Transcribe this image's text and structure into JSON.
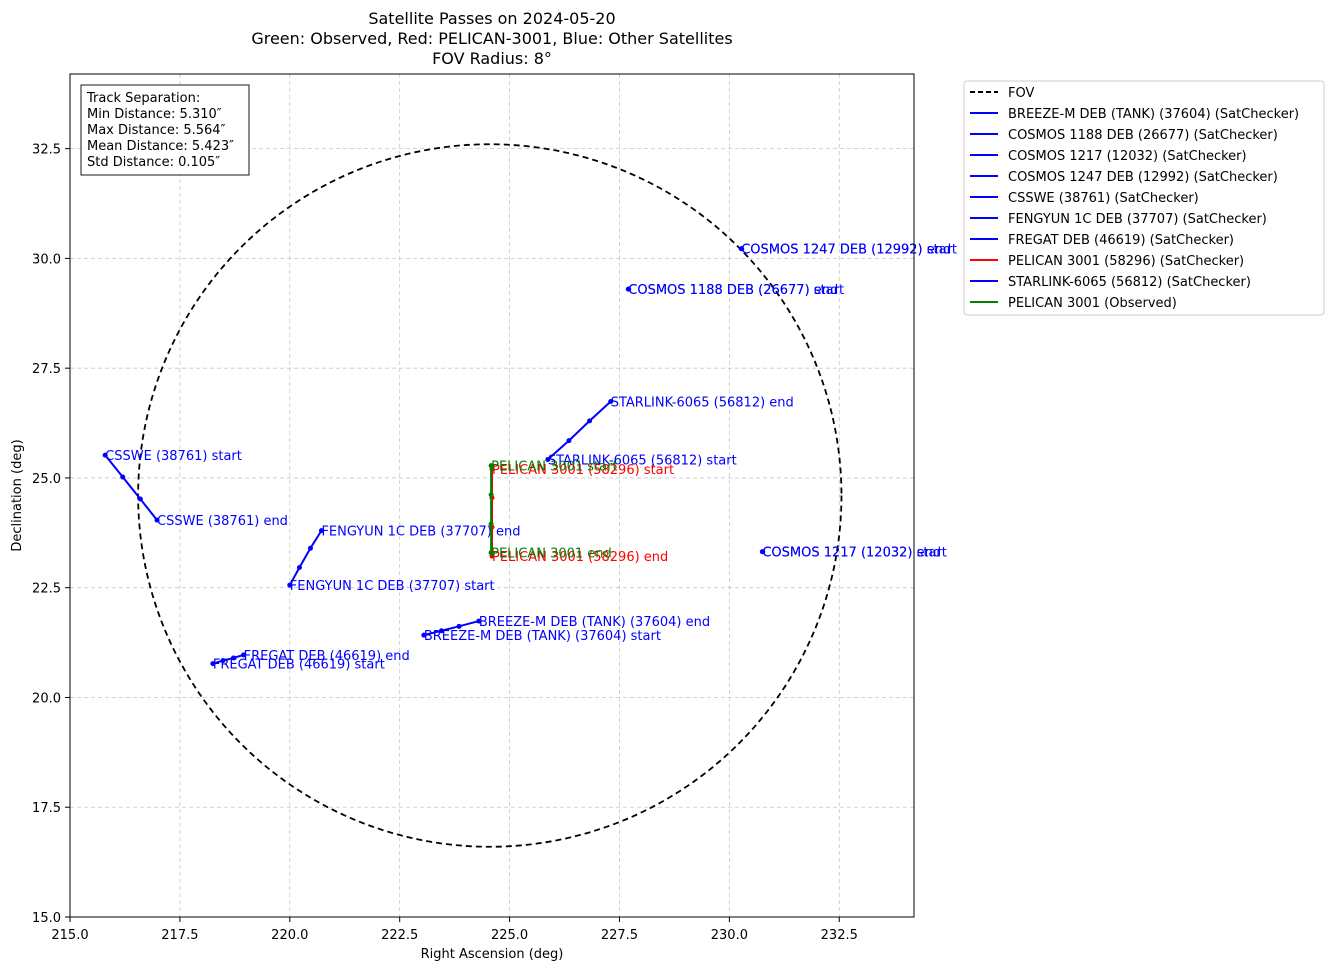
{
  "chart_data": {
    "type": "scatter",
    "title_lines": [
      "Satellite Passes on 2024-05-20",
      "Green: Observed, Red: PELICAN-3001, Blue: Other Satellites",
      "FOV Radius: 8°"
    ],
    "xlabel": "Right Ascension (deg)",
    "ylabel": "Declination (deg)",
    "xlim": [
      215.0,
      234.2
    ],
    "ylim": [
      15.0,
      34.2
    ],
    "xticks": [
      "215.0",
      "217.5",
      "220.0",
      "222.5",
      "225.0",
      "227.5",
      "230.0",
      "232.5"
    ],
    "yticks": [
      "15.0",
      "17.5",
      "20.0",
      "22.5",
      "25.0",
      "27.5",
      "30.0",
      "32.5"
    ],
    "grid": true,
    "fov": {
      "center": [
        224.55,
        24.6
      ],
      "radius": 8.0
    },
    "stats_box": {
      "lines": [
        "Track Separation:",
        "Min Distance: 5.310″",
        "Max Distance: 5.564″",
        "Mean Distance: 5.423″",
        "Std Distance: 0.105″"
      ]
    },
    "legend": {
      "placement": "outside-upper-right",
      "entries": [
        {
          "label": "FOV",
          "color": "#000000",
          "dashed": true
        },
        {
          "label": "BREEZE-M DEB (TANK) (37604) (SatChecker)",
          "color": "#0000ff"
        },
        {
          "label": "COSMOS 1188 DEB (26677) (SatChecker)",
          "color": "#0000ff"
        },
        {
          "label": "COSMOS 1217 (12032) (SatChecker)",
          "color": "#0000ff"
        },
        {
          "label": "COSMOS 1247 DEB (12992) (SatChecker)",
          "color": "#0000ff"
        },
        {
          "label": "CSSWE (38761) (SatChecker)",
          "color": "#0000ff"
        },
        {
          "label": "FENGYUN 1C DEB (37707) (SatChecker)",
          "color": "#0000ff"
        },
        {
          "label": "FREGAT DEB (46619) (SatChecker)",
          "color": "#0000ff"
        },
        {
          "label": "PELICAN 3001 (58296) (SatChecker)",
          "color": "#ff0000"
        },
        {
          "label": "STARLINK-6065 (56812) (SatChecker)",
          "color": "#0000ff"
        },
        {
          "label": "PELICAN 3001 (Observed)",
          "color": "#008000"
        }
      ]
    },
    "series": [
      {
        "id": "breeze",
        "color": "#0000ff",
        "points": [
          [
            223.05,
            21.42
          ],
          [
            223.45,
            21.52
          ],
          [
            223.85,
            21.62
          ],
          [
            224.3,
            21.74
          ]
        ],
        "labels": [
          {
            "text": "BREEZE-M DEB (TANK) (37604) start",
            "at": [
              223.05,
              21.42
            ]
          },
          {
            "text": "BREEZE-M DEB (TANK) (37604) end",
            "at": [
              224.3,
              21.74
            ]
          }
        ]
      },
      {
        "id": "cosmos1188",
        "color": "#0000ff",
        "points": [
          [
            227.7,
            29.3
          ],
          [
            227.71,
            29.3
          ]
        ],
        "labels": [
          {
            "text": "COSMOS 1188 DEB (26677) start",
            "at": [
              227.7,
              29.3
            ]
          },
          {
            "text": "COSMOS 1188 DEB (26677) end",
            "at": [
              227.7,
              29.3
            ]
          }
        ]
      },
      {
        "id": "cosmos1217",
        "color": "#0000ff",
        "points": [
          [
            230.75,
            23.32
          ],
          [
            230.76,
            23.32
          ]
        ],
        "labels": [
          {
            "text": "COSMOS 1217 (12032) start",
            "at": [
              230.75,
              23.32
            ]
          },
          {
            "text": "COSMOS 1217 (12032) end",
            "at": [
              230.75,
              23.32
            ]
          }
        ]
      },
      {
        "id": "cosmos1247",
        "color": "#0000ff",
        "points": [
          [
            230.27,
            30.22
          ],
          [
            230.28,
            30.22
          ]
        ],
        "labels": [
          {
            "text": "COSMOS 1247 DEB (12992) start",
            "at": [
              230.27,
              30.22
            ]
          },
          {
            "text": "COSMOS 1247 DEB (12992) end",
            "at": [
              230.27,
              30.22
            ]
          }
        ]
      },
      {
        "id": "csswe",
        "color": "#0000ff",
        "points": [
          [
            215.8,
            25.52
          ],
          [
            216.2,
            25.02
          ],
          [
            216.6,
            24.52
          ],
          [
            216.98,
            24.04
          ]
        ],
        "labels": [
          {
            "text": "CSSWE (38761) start",
            "at": [
              215.8,
              25.52
            ]
          },
          {
            "text": "CSSWE (38761) end",
            "at": [
              216.98,
              24.04
            ]
          }
        ]
      },
      {
        "id": "fengyun",
        "color": "#0000ff",
        "points": [
          [
            220.0,
            22.56
          ],
          [
            220.22,
            22.96
          ],
          [
            220.47,
            23.4
          ],
          [
            220.72,
            23.8
          ]
        ],
        "labels": [
          {
            "text": "FENGYUN 1C DEB (37707) start",
            "at": [
              220.0,
              22.56
            ]
          },
          {
            "text": "FENGYUN 1C DEB (37707) end",
            "at": [
              220.72,
              23.8
            ]
          }
        ]
      },
      {
        "id": "fregat",
        "color": "#0000ff",
        "points": [
          [
            218.25,
            20.77
          ],
          [
            218.48,
            20.84
          ],
          [
            218.72,
            20.9
          ],
          [
            218.95,
            20.97
          ]
        ],
        "labels": [
          {
            "text": "FREGAT DEB (46619) start",
            "at": [
              218.25,
              20.77
            ]
          },
          {
            "text": "FREGAT DEB (46619) end",
            "at": [
              218.95,
              20.97
            ]
          }
        ]
      },
      {
        "id": "pelican_pred",
        "color": "#ff0000",
        "points": [
          [
            224.6,
            25.2
          ],
          [
            224.6,
            24.55
          ],
          [
            224.6,
            23.88
          ],
          [
            224.6,
            23.22
          ]
        ],
        "labels": [
          {
            "text": "PELICAN 3001 (58296) start",
            "at": [
              224.6,
              25.2
            ]
          },
          {
            "text": "PELICAN 3001 (58296) end",
            "at": [
              224.6,
              23.22
            ]
          }
        ]
      },
      {
        "id": "starlink",
        "color": "#0000ff",
        "points": [
          [
            225.87,
            25.42
          ],
          [
            226.35,
            25.85
          ],
          [
            226.82,
            26.3
          ],
          [
            227.3,
            26.74
          ]
        ],
        "labels": [
          {
            "text": "STARLINK-6065 (56812) start",
            "at": [
              225.87,
              25.42
            ]
          },
          {
            "text": "STARLINK-6065 (56812) end",
            "at": [
              227.3,
              26.74
            ]
          }
        ]
      },
      {
        "id": "pelican_obs",
        "color": "#008000",
        "points": [
          [
            224.58,
            25.28
          ],
          [
            224.58,
            24.62
          ],
          [
            224.58,
            23.95
          ],
          [
            224.58,
            23.3
          ]
        ],
        "labels": [
          {
            "text": "PELICAN 3001 start",
            "at": [
              224.58,
              25.28
            ]
          },
          {
            "text": "PELICAN 3001 end",
            "at": [
              224.58,
              23.3
            ]
          }
        ]
      }
    ]
  }
}
